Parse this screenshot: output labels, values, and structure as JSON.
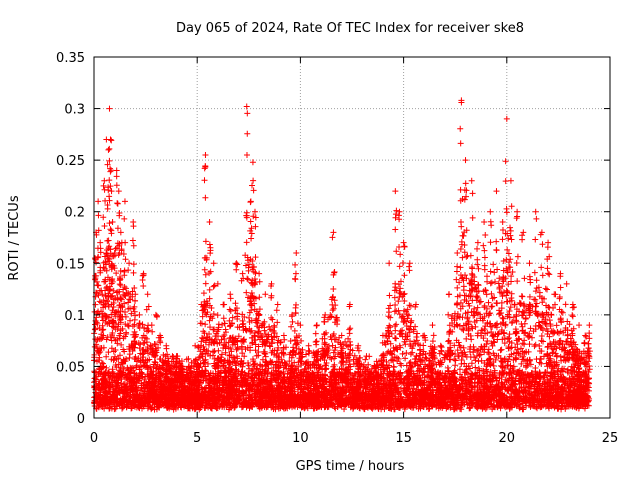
{
  "chart_data": {
    "type": "scatter",
    "title": "Day 065 of 2024, Rate Of TEC Index for receiver ske8",
    "xlabel": "GPS time / hours",
    "ylabel": "ROTI / TECUs",
    "xlim": [
      0,
      25
    ],
    "ylim": [
      0,
      0.35
    ],
    "xticks": [
      0,
      5,
      10,
      15,
      20,
      25
    ],
    "xtick_labels": [
      "0",
      "5",
      "10",
      "15",
      "20",
      "25"
    ],
    "yticks": [
      0,
      0.05,
      0.1,
      0.15,
      0.2,
      0.25,
      0.3,
      0.35
    ],
    "ytick_labels": [
      "0",
      "0.05",
      "0.1",
      "0.15",
      "0.2",
      "0.25",
      "0.3",
      "0.35"
    ],
    "grid": true,
    "marker": "+",
    "color": "#ff0000",
    "series": [
      {
        "name": "ROTI",
        "x": [
          0.05,
          0.1,
          0.2,
          0.3,
          0.4,
          0.5,
          0.6,
          0.7,
          0.75,
          0.8,
          0.85,
          0.9,
          1.0,
          1.1,
          1.2,
          1.3,
          1.5,
          1.7,
          1.9,
          2.0,
          2.2,
          2.4,
          2.6,
          2.8,
          3.0,
          3.2,
          3.5,
          3.8,
          4.0,
          4.3,
          4.6,
          4.9,
          5.2,
          5.4,
          5.6,
          5.8,
          6.0,
          6.3,
          6.6,
          6.9,
          7.2,
          7.4,
          7.6,
          7.7,
          7.8,
          8.0,
          8.3,
          8.6,
          8.9,
          9.2,
          9.6,
          9.8,
          10.0,
          10.4,
          10.8,
          11.2,
          11.6,
          12.0,
          12.4,
          12.8,
          13.2,
          13.6,
          14.0,
          14.3,
          14.6,
          14.8,
          15.0,
          15.3,
          15.6,
          16.0,
          16.4,
          16.8,
          17.2,
          17.6,
          17.8,
          18.0,
          18.3,
          18.6,
          18.9,
          19.2,
          19.5,
          19.8,
          20.0,
          20.2,
          20.5,
          20.8,
          21.1,
          21.4,
          21.7,
          22.0,
          22.3,
          22.6,
          22.9,
          23.2,
          23.5,
          23.8,
          24.0
        ],
        "y": [
          0.155,
          0.18,
          0.21,
          0.17,
          0.12,
          0.23,
          0.27,
          0.26,
          0.3,
          0.27,
          0.22,
          0.19,
          0.16,
          0.24,
          0.22,
          0.18,
          0.21,
          0.15,
          0.19,
          0.12,
          0.1,
          0.14,
          0.12,
          0.09,
          0.1,
          0.08,
          0.07,
          0.06,
          0.06,
          0.05,
          0.05,
          0.07,
          0.11,
          0.255,
          0.19,
          0.15,
          0.13,
          0.11,
          0.12,
          0.15,
          0.14,
          0.302,
          0.21,
          0.248,
          0.2,
          0.14,
          0.12,
          0.13,
          0.11,
          0.08,
          0.1,
          0.16,
          0.09,
          0.07,
          0.09,
          0.1,
          0.18,
          0.08,
          0.11,
          0.07,
          0.06,
          0.05,
          0.08,
          0.15,
          0.22,
          0.2,
          0.17,
          0.15,
          0.11,
          0.08,
          0.09,
          0.07,
          0.12,
          0.16,
          0.308,
          0.25,
          0.23,
          0.17,
          0.19,
          0.2,
          0.22,
          0.19,
          0.29,
          0.23,
          0.2,
          0.18,
          0.15,
          0.2,
          0.18,
          0.17,
          0.12,
          0.14,
          0.13,
          0.11,
          0.09,
          0.08,
          0.09
        ]
      }
    ]
  }
}
